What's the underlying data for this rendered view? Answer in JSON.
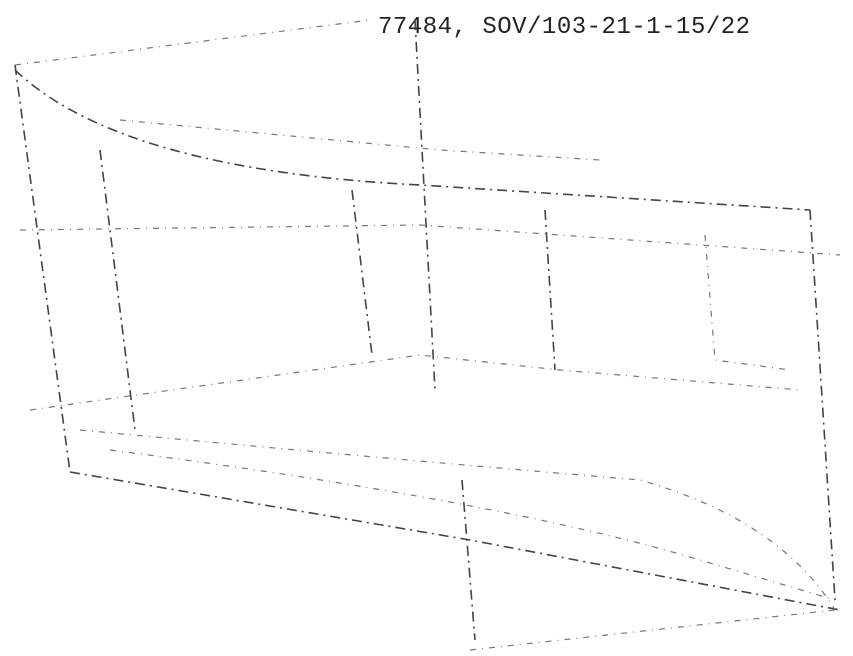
{
  "header": {
    "reference": "77484, SOV/103-21-1-15/22"
  }
}
